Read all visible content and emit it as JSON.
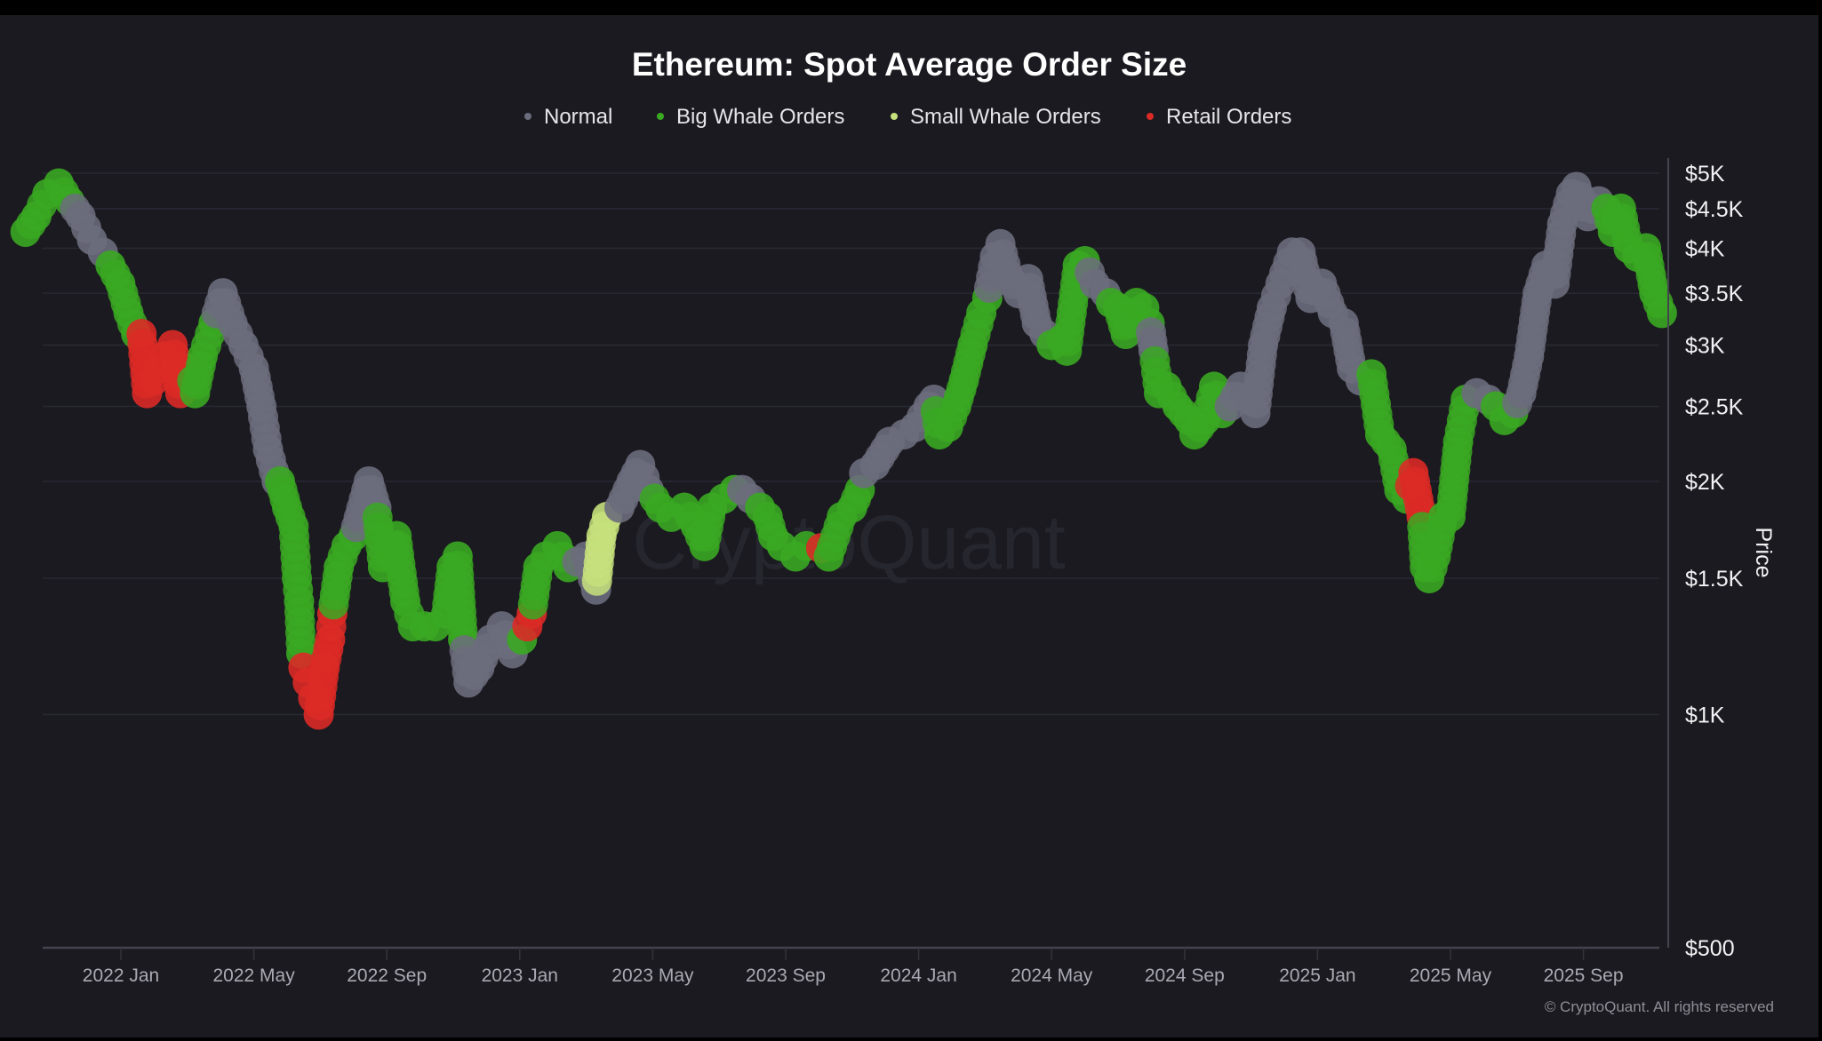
{
  "chart_data": {
    "type": "scatter",
    "title": "Ethereum: Spot Average Order Size",
    "ylabel": "Price",
    "xlabel": "",
    "y_scale": "log",
    "ylim": [
      500,
      5000
    ],
    "x_range": [
      "2021-10-05",
      "2025-11-15"
    ],
    "grid": true,
    "legend_position": "top",
    "watermark": "CryptoQuant",
    "copyright": "© CryptoQuant. All rights reserved",
    "y_ticks": [
      {
        "value": 5000,
        "label": "$5K"
      },
      {
        "value": 4500,
        "label": "$4.5K"
      },
      {
        "value": 4000,
        "label": "$4K"
      },
      {
        "value": 3500,
        "label": "$3.5K"
      },
      {
        "value": 3000,
        "label": "$3K"
      },
      {
        "value": 2500,
        "label": "$2.5K"
      },
      {
        "value": 2000,
        "label": "$2K"
      },
      {
        "value": 1500,
        "label": "$1.5K"
      },
      {
        "value": 1000,
        "label": "$1K"
      },
      {
        "value": 500,
        "label": "$500"
      }
    ],
    "x_ticks": [
      {
        "date": "2022-01-01",
        "label": "2022 Jan"
      },
      {
        "date": "2022-05-01",
        "label": "2022 May"
      },
      {
        "date": "2022-09-01",
        "label": "2022 Sep"
      },
      {
        "date": "2023-01-01",
        "label": "2023 Jan"
      },
      {
        "date": "2023-05-01",
        "label": "2023 May"
      },
      {
        "date": "2023-09-01",
        "label": "2023 Sep"
      },
      {
        "date": "2024-01-01",
        "label": "2024 Jan"
      },
      {
        "date": "2024-05-01",
        "label": "2024 May"
      },
      {
        "date": "2024-09-01",
        "label": "2024 Sep"
      },
      {
        "date": "2025-01-01",
        "label": "2025 Jan"
      },
      {
        "date": "2025-05-01",
        "label": "2025 May"
      },
      {
        "date": "2025-09-01",
        "label": "2025 Sep"
      }
    ],
    "series": [
      {
        "key": "normal",
        "name": "Normal",
        "color": "#6c6d7c"
      },
      {
        "key": "big",
        "name": "Big Whale Orders",
        "color": "#3aa822"
      },
      {
        "key": "small",
        "name": "Small Whale Orders",
        "color": "#c5e17c"
      },
      {
        "key": "retail",
        "name": "Retail Orders",
        "color": "#dc2a26"
      }
    ],
    "points": [
      [
        "2021-10-05",
        4200,
        "big"
      ],
      [
        "2021-10-15",
        4400,
        "big"
      ],
      [
        "2021-10-25",
        4700,
        "big"
      ],
      [
        "2021-11-05",
        4850,
        "big"
      ],
      [
        "2021-11-15",
        4600,
        "big"
      ],
      [
        "2021-11-25",
        4400,
        "normal"
      ],
      [
        "2021-12-05",
        4100,
        "normal"
      ],
      [
        "2021-12-15",
        3950,
        "normal"
      ],
      [
        "2021-12-22",
        3800,
        "big"
      ],
      [
        "2021-12-31",
        3600,
        "big"
      ],
      [
        "2022-01-08",
        3300,
        "big"
      ],
      [
        "2022-01-15",
        3100,
        "big"
      ],
      [
        "2022-01-20",
        3100,
        "retail"
      ],
      [
        "2022-01-25",
        2600,
        "retail"
      ],
      [
        "2022-02-01",
        2700,
        "retail"
      ],
      [
        "2022-02-10",
        2900,
        "retail"
      ],
      [
        "2022-02-18",
        3000,
        "retail"
      ],
      [
        "2022-02-25",
        2600,
        "retail"
      ],
      [
        "2022-03-03",
        2800,
        "retail"
      ],
      [
        "2022-03-08",
        2600,
        "big"
      ],
      [
        "2022-03-15",
        2900,
        "big"
      ],
      [
        "2022-03-25",
        3200,
        "big"
      ],
      [
        "2022-04-03",
        3500,
        "normal"
      ],
      [
        "2022-04-12",
        3200,
        "normal"
      ],
      [
        "2022-04-22",
        3000,
        "normal"
      ],
      [
        "2022-05-01",
        2800,
        "normal"
      ],
      [
        "2022-05-08",
        2500,
        "normal"
      ],
      [
        "2022-05-14",
        2200,
        "normal"
      ],
      [
        "2022-05-22",
        2000,
        "normal"
      ],
      [
        "2022-05-25",
        2000,
        "big"
      ],
      [
        "2022-06-01",
        1850,
        "big"
      ],
      [
        "2022-06-07",
        1750,
        "big"
      ],
      [
        "2022-06-10",
        1500,
        "big"
      ],
      [
        "2022-06-12",
        1400,
        "big"
      ],
      [
        "2022-06-14",
        1200,
        "big"
      ],
      [
        "2022-06-16",
        1150,
        "retail"
      ],
      [
        "2022-06-20",
        1100,
        "retail"
      ],
      [
        "2022-06-25",
        1050,
        "retail"
      ],
      [
        "2022-06-30",
        1000,
        "retail"
      ],
      [
        "2022-07-05",
        1150,
        "retail"
      ],
      [
        "2022-07-10",
        1250,
        "retail"
      ],
      [
        "2022-07-12",
        1350,
        "retail"
      ],
      [
        "2022-07-18",
        1550,
        "big"
      ],
      [
        "2022-07-25",
        1650,
        "big"
      ],
      [
        "2022-08-01",
        1700,
        "big"
      ],
      [
        "2022-08-15",
        2000,
        "normal"
      ],
      [
        "2022-08-22",
        1850,
        "normal"
      ],
      [
        "2022-08-28",
        1550,
        "big"
      ],
      [
        "2022-09-05",
        1600,
        "big"
      ],
      [
        "2022-09-10",
        1700,
        "big"
      ],
      [
        "2022-09-18",
        1400,
        "big"
      ],
      [
        "2022-09-25",
        1300,
        "big"
      ],
      [
        "2022-10-05",
        1300,
        "big"
      ],
      [
        "2022-10-15",
        1300,
        "big"
      ],
      [
        "2022-10-25",
        1350,
        "big"
      ],
      [
        "2022-10-30",
        1550,
        "big"
      ],
      [
        "2022-11-05",
        1600,
        "big"
      ],
      [
        "2022-11-10",
        1250,
        "big"
      ],
      [
        "2022-11-15",
        1100,
        "normal"
      ],
      [
        "2022-11-25",
        1150,
        "normal"
      ],
      [
        "2022-12-05",
        1250,
        "normal"
      ],
      [
        "2022-12-15",
        1300,
        "normal"
      ],
      [
        "2022-12-25",
        1200,
        "normal"
      ],
      [
        "2023-01-03",
        1250,
        "big"
      ],
      [
        "2023-01-08",
        1300,
        "retail"
      ],
      [
        "2023-01-12",
        1350,
        "retail"
      ],
      [
        "2023-01-18",
        1550,
        "big"
      ],
      [
        "2023-01-25",
        1600,
        "big"
      ],
      [
        "2023-02-05",
        1650,
        "big"
      ],
      [
        "2023-02-15",
        1550,
        "big"
      ],
      [
        "2023-03-01",
        1600,
        "normal"
      ],
      [
        "2023-03-10",
        1450,
        "normal"
      ],
      [
        "2023-03-15",
        1700,
        "small"
      ],
      [
        "2023-03-20",
        1800,
        "small"
      ],
      [
        "2023-04-01",
        1850,
        "normal"
      ],
      [
        "2023-04-12",
        2000,
        "normal"
      ],
      [
        "2023-04-20",
        2100,
        "normal"
      ],
      [
        "2023-04-28",
        1950,
        "normal"
      ],
      [
        "2023-05-08",
        1850,
        "big"
      ],
      [
        "2023-05-18",
        1800,
        "big"
      ],
      [
        "2023-05-30",
        1850,
        "big"
      ],
      [
        "2023-06-10",
        1750,
        "big"
      ],
      [
        "2023-06-18",
        1650,
        "big"
      ],
      [
        "2023-06-25",
        1850,
        "big"
      ],
      [
        "2023-07-05",
        1900,
        "big"
      ],
      [
        "2023-07-15",
        1950,
        "big"
      ],
      [
        "2023-07-22",
        1950,
        "normal"
      ],
      [
        "2023-07-30",
        1900,
        "normal"
      ],
      [
        "2023-08-08",
        1850,
        "big"
      ],
      [
        "2023-08-15",
        1800,
        "big"
      ],
      [
        "2023-08-20",
        1700,
        "big"
      ],
      [
        "2023-08-28",
        1650,
        "big"
      ],
      [
        "2023-09-10",
        1600,
        "big"
      ],
      [
        "2023-09-20",
        1650,
        "big"
      ],
      [
        "2023-10-03",
        1640,
        "retail"
      ],
      [
        "2023-10-10",
        1600,
        "big"
      ],
      [
        "2023-10-22",
        1800,
        "big"
      ],
      [
        "2023-11-01",
        1850,
        "big"
      ],
      [
        "2023-11-08",
        1950,
        "big"
      ],
      [
        "2023-11-12",
        2050,
        "normal"
      ],
      [
        "2023-11-22",
        2100,
        "normal"
      ],
      [
        "2023-12-05",
        2250,
        "normal"
      ],
      [
        "2023-12-18",
        2300,
        "normal"
      ],
      [
        "2023-12-28",
        2350,
        "normal"
      ],
      [
        "2024-01-10",
        2500,
        "normal"
      ],
      [
        "2024-01-15",
        2550,
        "normal"
      ],
      [
        "2024-01-20",
        2300,
        "big"
      ],
      [
        "2024-01-28",
        2350,
        "big"
      ],
      [
        "2024-02-05",
        2500,
        "big"
      ],
      [
        "2024-02-12",
        2700,
        "big"
      ],
      [
        "2024-02-20",
        3000,
        "big"
      ],
      [
        "2024-02-28",
        3300,
        "big"
      ],
      [
        "2024-03-03",
        3450,
        "big"
      ],
      [
        "2024-03-10",
        3900,
        "normal"
      ],
      [
        "2024-03-15",
        4050,
        "normal"
      ],
      [
        "2024-03-22",
        3700,
        "normal"
      ],
      [
        "2024-04-01",
        3500,
        "normal"
      ],
      [
        "2024-04-10",
        3650,
        "normal"
      ],
      [
        "2024-04-18",
        3200,
        "normal"
      ],
      [
        "2024-04-25",
        3100,
        "normal"
      ],
      [
        "2024-05-01",
        3000,
        "big"
      ],
      [
        "2024-05-10",
        3050,
        "big"
      ],
      [
        "2024-05-15",
        2950,
        "big"
      ],
      [
        "2024-05-25",
        3800,
        "big"
      ],
      [
        "2024-06-01",
        3850,
        "big"
      ],
      [
        "2024-06-10",
        3600,
        "normal"
      ],
      [
        "2024-06-20",
        3500,
        "normal"
      ],
      [
        "2024-06-25",
        3400,
        "big"
      ],
      [
        "2024-07-01",
        3350,
        "big"
      ],
      [
        "2024-07-08",
        3100,
        "big"
      ],
      [
        "2024-07-18",
        3400,
        "big"
      ],
      [
        "2024-07-25",
        3350,
        "big"
      ],
      [
        "2024-07-30",
        3200,
        "big"
      ],
      [
        "2024-08-03",
        2950,
        "normal"
      ],
      [
        "2024-08-08",
        2600,
        "big"
      ],
      [
        "2024-08-15",
        2650,
        "big"
      ],
      [
        "2024-08-25",
        2500,
        "big"
      ],
      [
        "2024-09-05",
        2400,
        "big"
      ],
      [
        "2024-09-10",
        2300,
        "big"
      ],
      [
        "2024-09-20",
        2400,
        "big"
      ],
      [
        "2024-09-28",
        2650,
        "big"
      ],
      [
        "2024-10-05",
        2450,
        "big"
      ],
      [
        "2024-10-12",
        2500,
        "normal"
      ],
      [
        "2024-10-22",
        2650,
        "normal"
      ],
      [
        "2024-10-30",
        2550,
        "normal"
      ],
      [
        "2024-11-05",
        2450,
        "normal"
      ],
      [
        "2024-11-12",
        3000,
        "normal"
      ],
      [
        "2024-11-20",
        3350,
        "normal"
      ],
      [
        "2024-11-28",
        3600,
        "normal"
      ],
      [
        "2024-12-08",
        3950,
        "normal"
      ],
      [
        "2024-12-16",
        3950,
        "normal"
      ],
      [
        "2024-12-25",
        3450,
        "normal"
      ],
      [
        "2025-01-05",
        3600,
        "normal"
      ],
      [
        "2025-01-15",
        3300,
        "normal"
      ],
      [
        "2025-01-25",
        3200,
        "normal"
      ],
      [
        "2025-02-02",
        2800,
        "normal"
      ],
      [
        "2025-02-10",
        2700,
        "normal"
      ],
      [
        "2025-02-20",
        2750,
        "big"
      ],
      [
        "2025-02-28",
        2300,
        "big"
      ],
      [
        "2025-03-08",
        2200,
        "big"
      ],
      [
        "2025-03-15",
        1950,
        "big"
      ],
      [
        "2025-03-22",
        1900,
        "big"
      ],
      [
        "2025-03-28",
        2050,
        "retail"
      ],
      [
        "2025-04-05",
        1800,
        "retail"
      ],
      [
        "2025-04-08",
        1550,
        "big"
      ],
      [
        "2025-04-12",
        1500,
        "big"
      ],
      [
        "2025-04-18",
        1600,
        "big"
      ],
      [
        "2025-04-25",
        1800,
        "big"
      ],
      [
        "2025-05-01",
        1800,
        "big"
      ],
      [
        "2025-05-08",
        2250,
        "big"
      ],
      [
        "2025-05-15",
        2550,
        "big"
      ],
      [
        "2025-05-25",
        2600,
        "normal"
      ],
      [
        "2025-06-05",
        2550,
        "normal"
      ],
      [
        "2025-06-12",
        2500,
        "big"
      ],
      [
        "2025-06-20",
        2400,
        "big"
      ],
      [
        "2025-06-28",
        2450,
        "big"
      ],
      [
        "2025-07-05",
        2600,
        "normal"
      ],
      [
        "2025-07-12",
        2900,
        "normal"
      ],
      [
        "2025-07-20",
        3500,
        "normal"
      ],
      [
        "2025-07-28",
        3800,
        "normal"
      ],
      [
        "2025-08-05",
        3600,
        "normal"
      ],
      [
        "2025-08-12",
        4300,
        "normal"
      ],
      [
        "2025-08-20",
        4700,
        "normal"
      ],
      [
        "2025-08-25",
        4800,
        "normal"
      ],
      [
        "2025-09-05",
        4400,
        "normal"
      ],
      [
        "2025-09-15",
        4600,
        "normal"
      ],
      [
        "2025-09-22",
        4500,
        "big"
      ],
      [
        "2025-09-28",
        4200,
        "big"
      ],
      [
        "2025-10-05",
        4500,
        "big"
      ],
      [
        "2025-10-12",
        4000,
        "big"
      ],
      [
        "2025-10-20",
        3900,
        "big"
      ],
      [
        "2025-10-28",
        4000,
        "big"
      ],
      [
        "2025-11-05",
        3500,
        "big"
      ],
      [
        "2025-11-12",
        3300,
        "big"
      ]
    ]
  }
}
